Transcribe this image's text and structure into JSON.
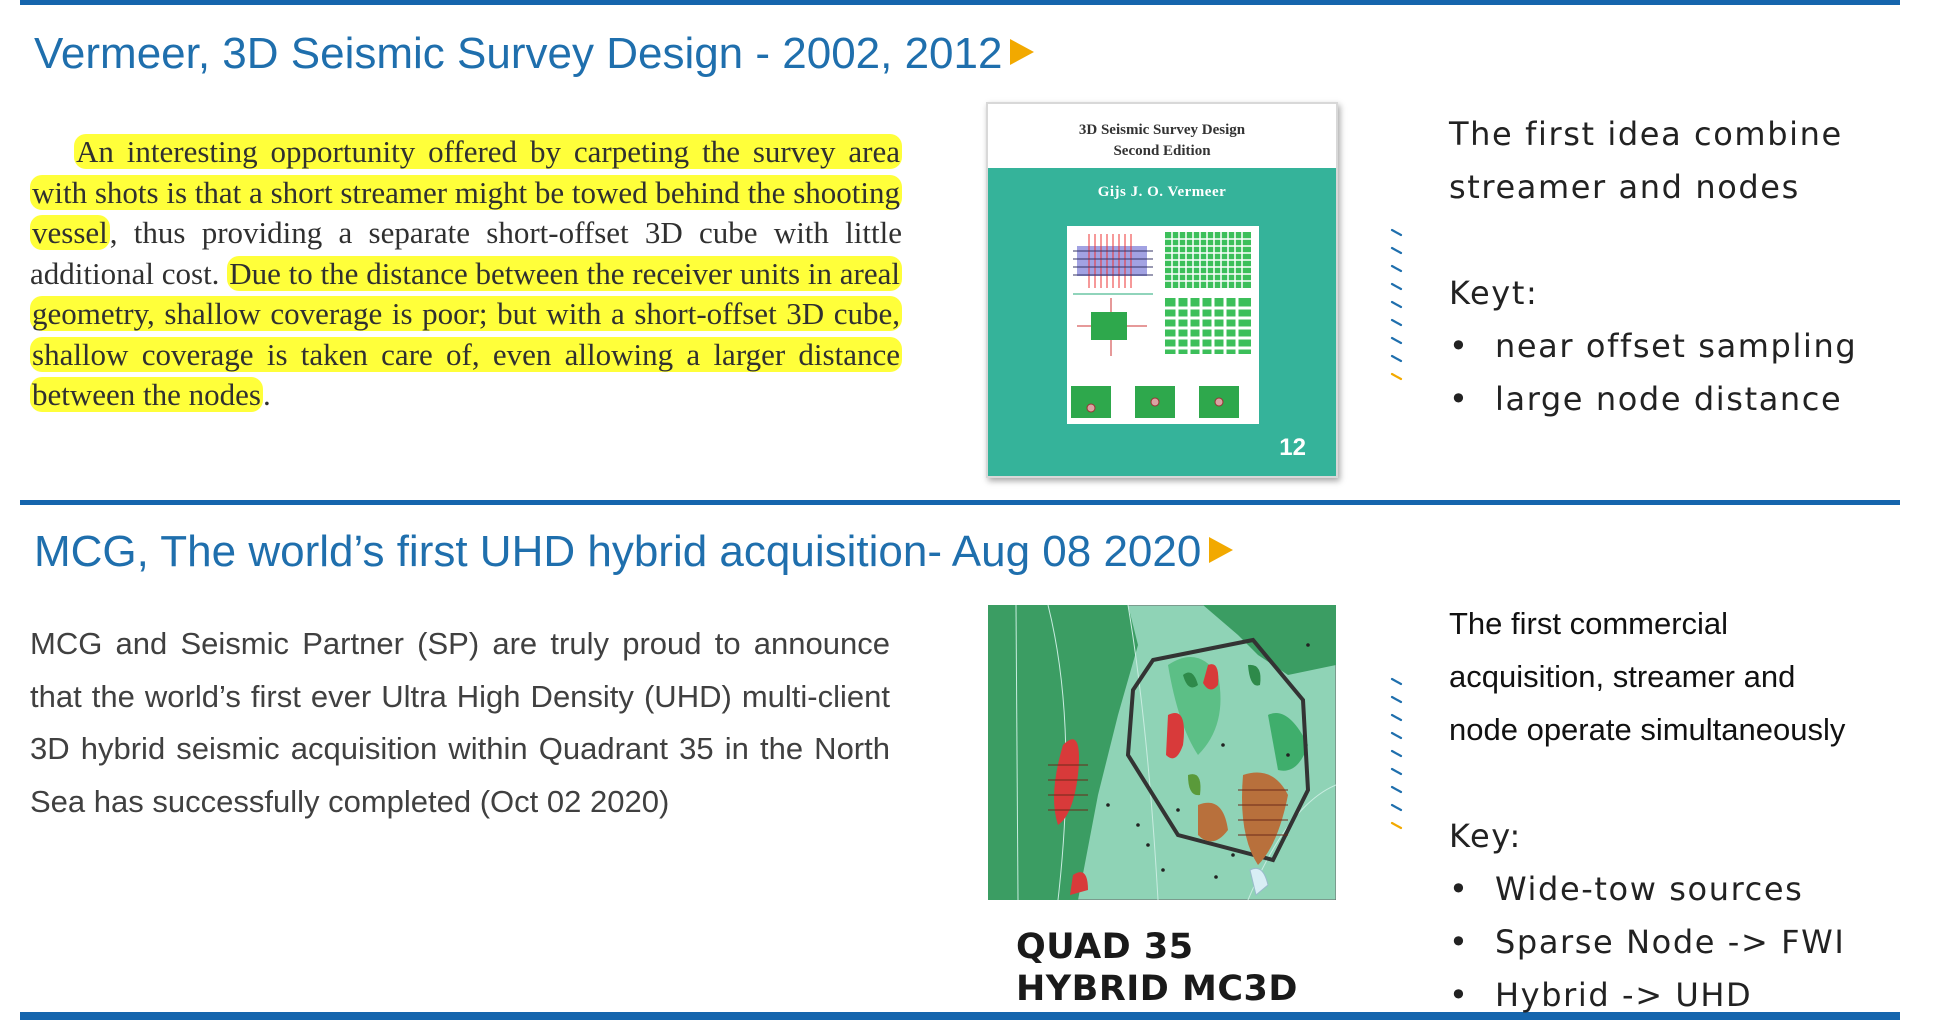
{
  "section1": {
    "title": "Vermeer, 3D Seismic Survey Design - 2002, 2012",
    "quote": {
      "hl1": "An interesting opportunity offered by carpeting the survey area with shots is that a short streamer might be towed behind the shooting vessel",
      "plain": ", thus providing a separate short-offset 3D cube with little additional cost.",
      "hl2": "Due to the distance between the receiver units in areal geometry, shallow coverage is poor; but with a short-offset 3D cube, shallow coverage is taken care of, even allowing a larger distance between the nodes",
      "end": "."
    },
    "book": {
      "title_line1": "3D Seismic Survey Design",
      "title_line2": "Second Edition",
      "author": "Gijs J. O. Vermeer",
      "number": "12"
    },
    "side": {
      "line1": "The first idea combine",
      "line2": "streamer and nodes",
      "key_label": "Keyt:",
      "bullets": [
        "near offset sampling",
        "large node distance"
      ]
    }
  },
  "section2": {
    "title": "MCG, The world’s first UHD hybrid acquisition- Aug 08 2020",
    "body": "MCG and Seismic Partner (SP) are truly proud to announce that the world’s first ever Ultra High Density (UHD) multi-client 3D hybrid seismic acquisition within Quadrant 35 in the North Sea has successfully completed (Oct 02 2020)",
    "map_caption_line1": "QUAD 35",
    "map_caption_line2": "HYBRID MC3D",
    "side": {
      "line1": "The first commercial",
      "line2": "acquisition, streamer and",
      "line3": "node operate simultaneously",
      "key_label": "Key:",
      "bullets": [
        "Wide-tow sources",
        "Sparse Node -> FWI",
        "Hybrid -> UHD"
      ]
    }
  },
  "colors": {
    "accent_blue": "#1565ad",
    "title_blue": "#1f6fad",
    "arrow_orange": "#f2a900",
    "highlight_yellow": "#ffff3a",
    "book_teal": "#35b39a"
  }
}
